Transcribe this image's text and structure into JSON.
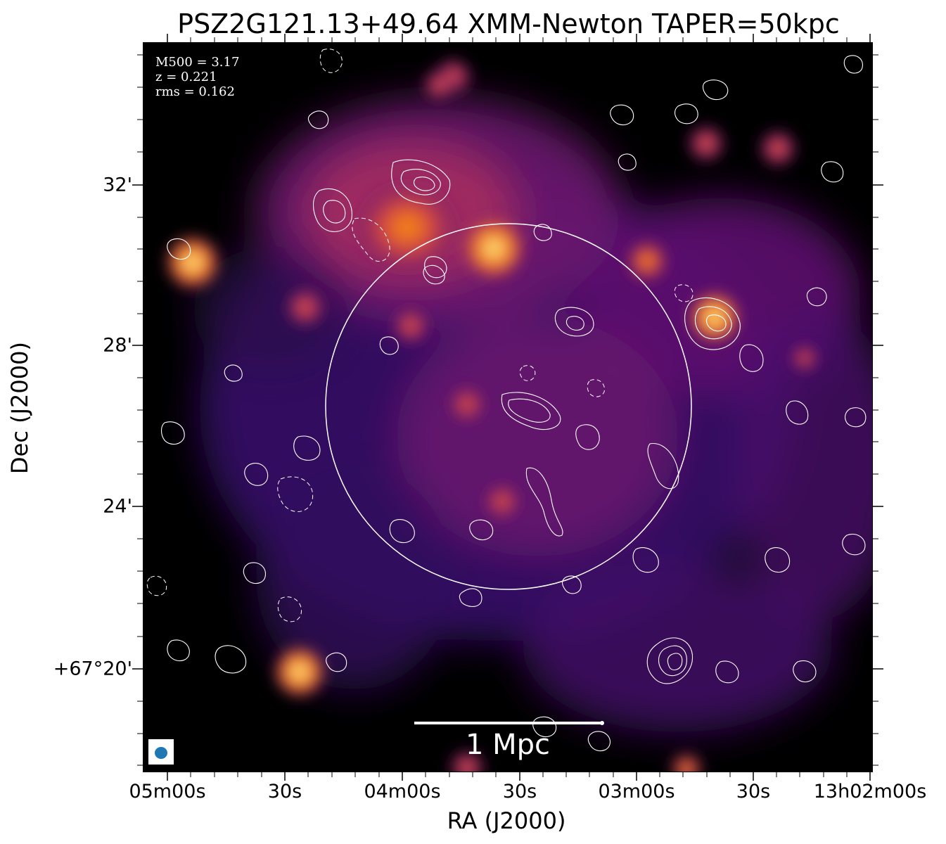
{
  "title": "PSZ2G121.13+49.64 XMM-Newton TAPER=50kpc",
  "axes": {
    "xlabel": "RA (J2000)",
    "ylabel": "Dec (J2000)",
    "yticks": [
      "32'",
      "28'",
      "24'",
      "+67°20'"
    ],
    "xticks": [
      "05m00s",
      "30s",
      "04m00s",
      "30s",
      "03m00s",
      "30s",
      "13h02m00s"
    ]
  },
  "info": {
    "m500": "M500 = 3.17",
    "z": "z = 0.221",
    "rms": "rms = 0.162"
  },
  "scale_bar": {
    "label": "1 Mpc",
    "color": "#ffffff"
  },
  "beam": {
    "color": "#1f77b4"
  },
  "colormap": "inferno",
  "contour_color": "#ffffff"
}
